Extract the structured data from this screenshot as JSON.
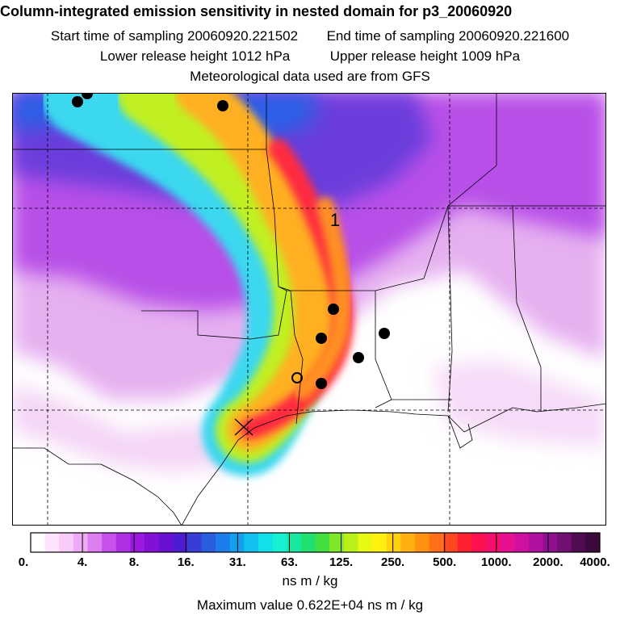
{
  "header": {
    "title": "Column-integrated emission sensitivity in nested domain for p3_20060920",
    "start": "Start time of sampling 20060920.221502",
    "end": "End time of sampling 20060920.221600",
    "lower": "Lower release height 1012 hPa",
    "upper": "Upper release height 1009 hPa",
    "met": "Meteorological data used are from GFS"
  },
  "map": {
    "plume_label": "1",
    "marker_count": 10
  },
  "colorbar": {
    "tick_labels": [
      "0.",
      "4.",
      "8.",
      "16.",
      "31.",
      "63.",
      "125.",
      "250.",
      "500.",
      "1000.",
      "2000.",
      "4000."
    ],
    "colors": [
      "#ffffff",
      "#fde4fc",
      "#f9cbf8",
      "#eeaaf4",
      "#dd7ef0",
      "#c651ec",
      "#b030e6",
      "#9a18df",
      "#8410d8",
      "#6a10d2",
      "#4e1cd0",
      "#3a3cd6",
      "#2a5ce0",
      "#1c7cea",
      "#12a0ee",
      "#10c0ee",
      "#10e0ec",
      "#14f0d0",
      "#18e8a0",
      "#20e070",
      "#40e040",
      "#80e828",
      "#b8f018",
      "#e8f810",
      "#fff010",
      "#ffd010",
      "#ffb010",
      "#ff9010",
      "#ff7018",
      "#ff4820",
      "#ff2030",
      "#ff1050",
      "#f51070",
      "#e81090",
      "#d010a0",
      "#b010a0",
      "#901090",
      "#701070",
      "#500c50",
      "#3a0a3a"
    ],
    "unit": "ns m / kg"
  },
  "footer": {
    "max_value": "Maximum value  0.622E+04 ns m / kg"
  }
}
